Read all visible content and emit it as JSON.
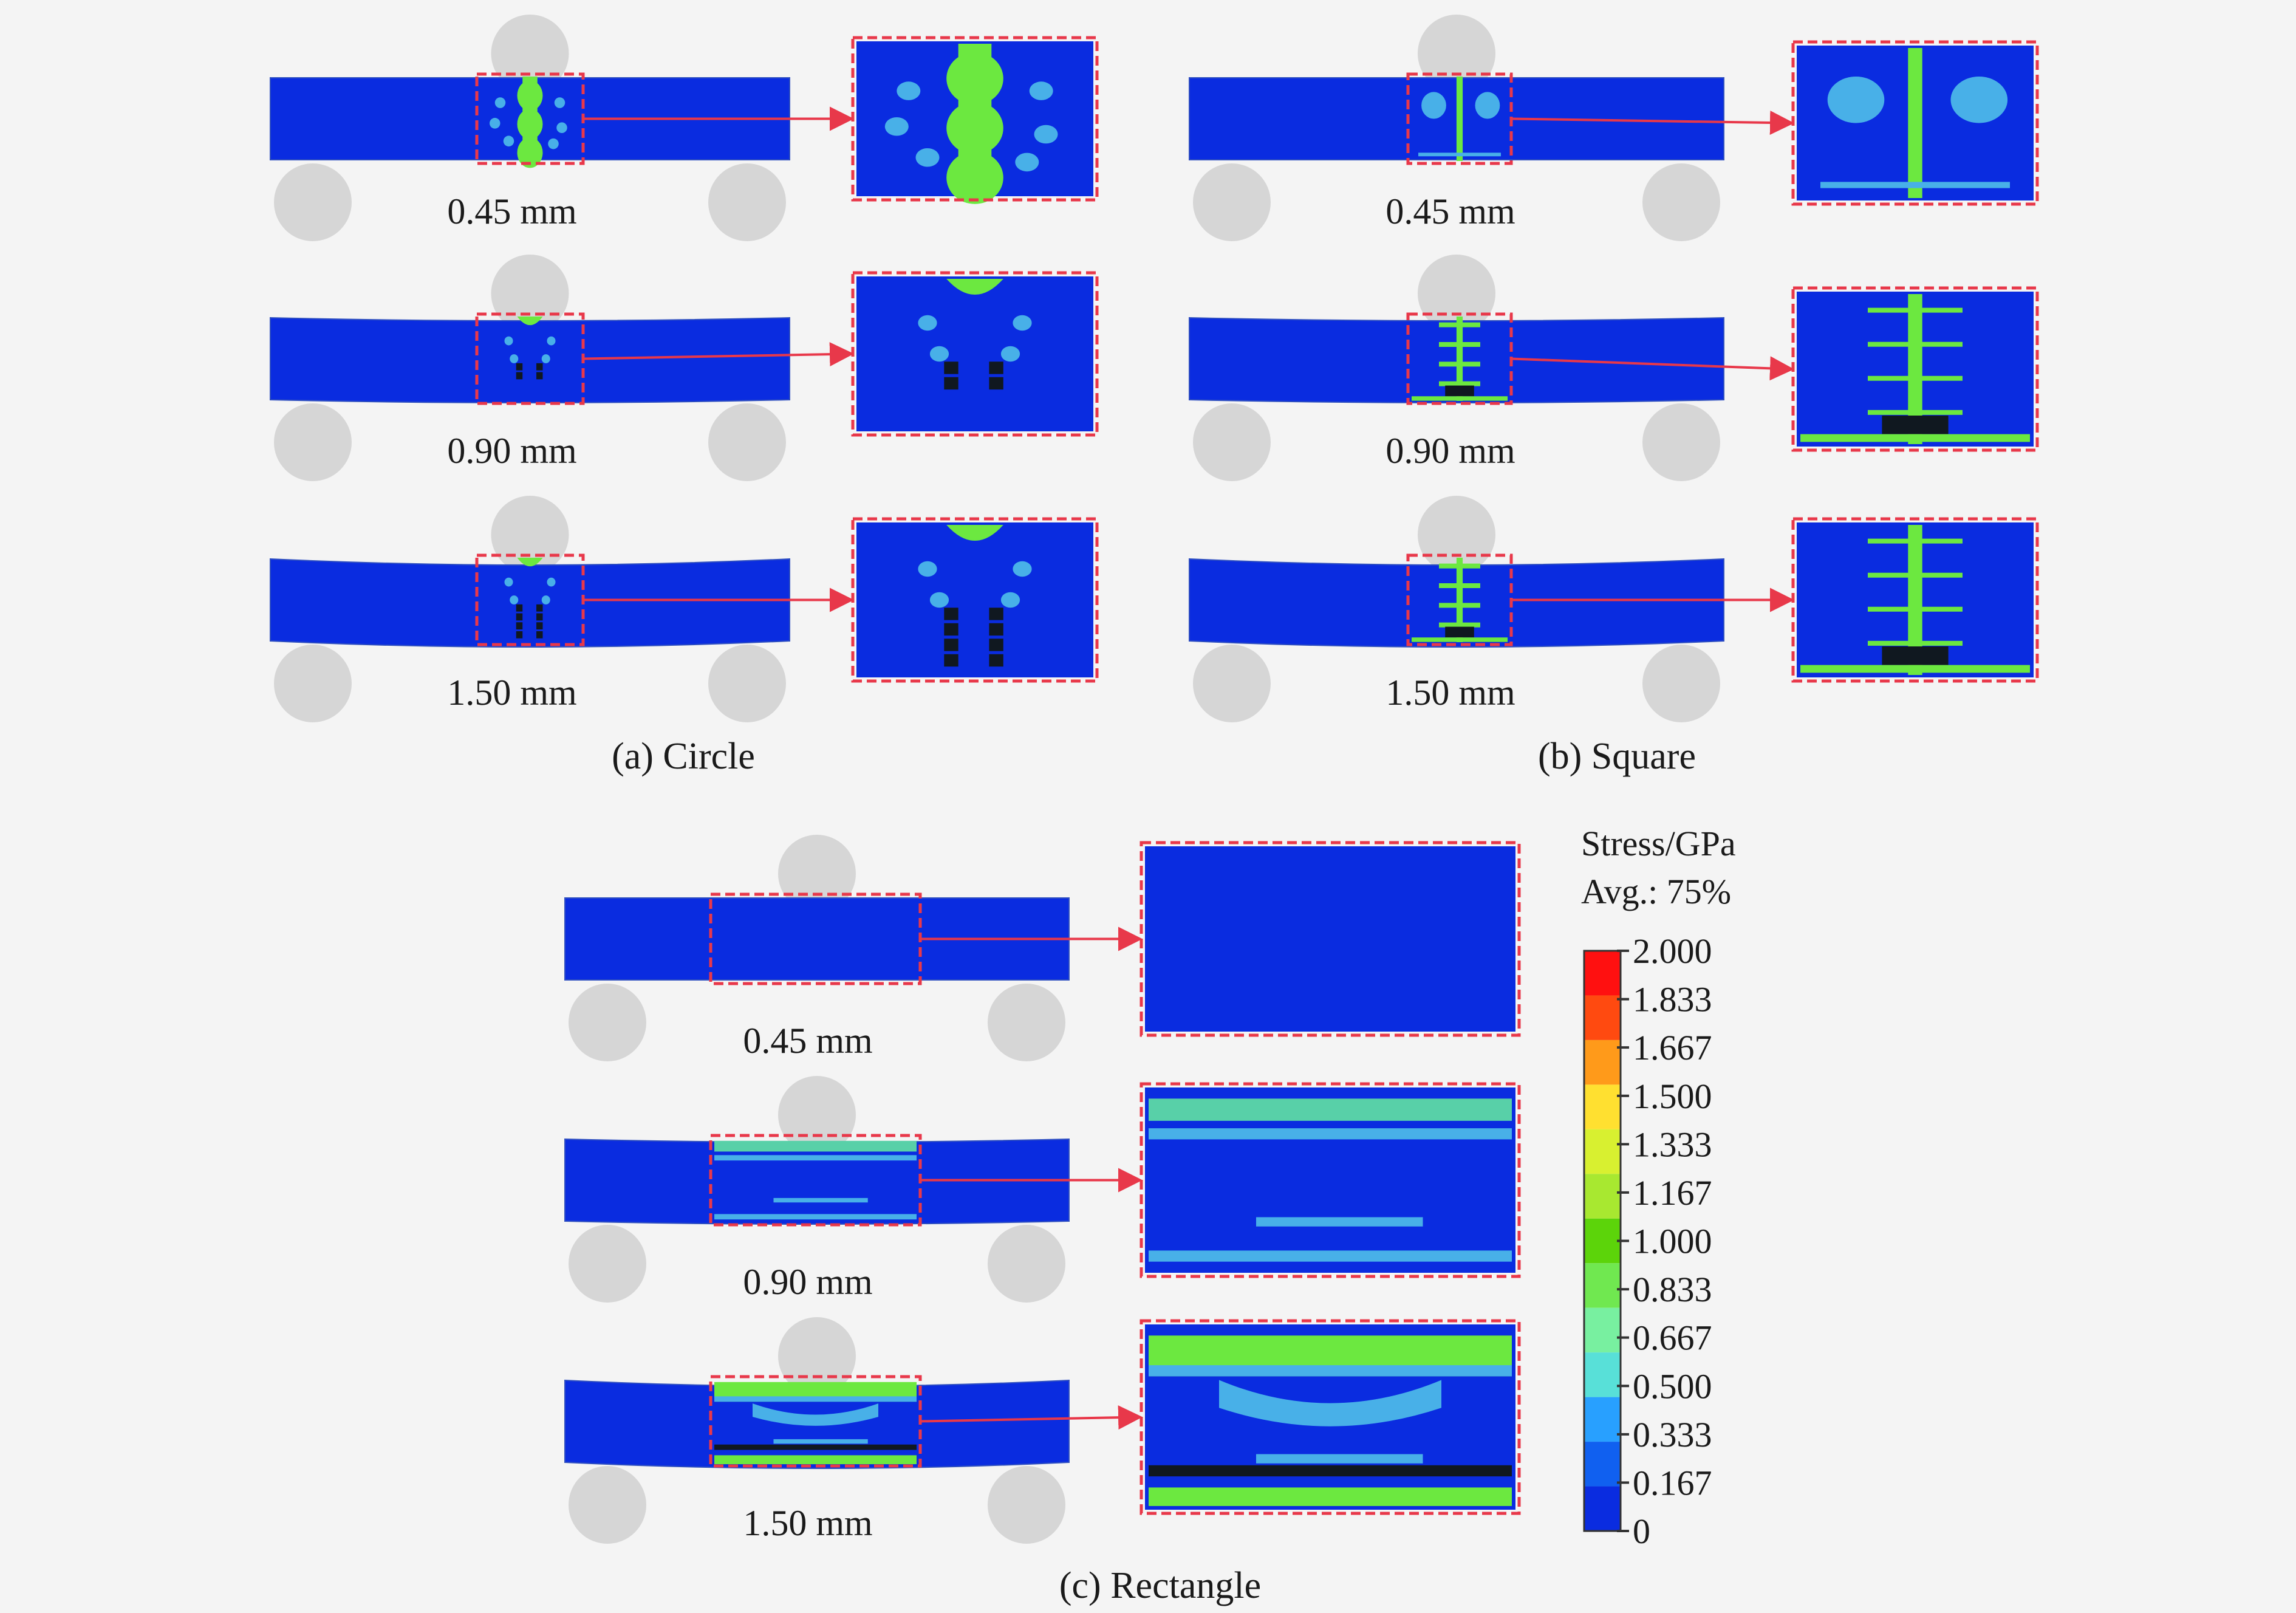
{
  "panels": [
    {
      "caption": "(a) Circle",
      "key": "circle",
      "rows": [
        {
          "label": "0.45 mm"
        },
        {
          "label": "0.90 mm"
        },
        {
          "label": "1.50 mm"
        }
      ]
    },
    {
      "caption": "(b) Square",
      "key": "square",
      "rows": [
        {
          "label": "0.45 mm"
        },
        {
          "label": "0.90 mm"
        },
        {
          "label": "1.50 mm"
        }
      ]
    },
    {
      "caption": "(c) Rectangle",
      "key": "rectangle",
      "rows": [
        {
          "label": "0.45 mm"
        },
        {
          "label": "0.90 mm"
        },
        {
          "label": "1.50 mm"
        }
      ]
    }
  ],
  "legend": {
    "title": "Stress/GPa",
    "subtitle": "Avg.: 75%",
    "ticks": [
      "2.000",
      "1.833",
      "1.667",
      "1.500",
      "1.333",
      "1.167",
      "1.000",
      "0.833",
      "0.667",
      "0.500",
      "0.333",
      "0.167",
      "0"
    ],
    "colors": [
      "#ff1010",
      "#ff4a10",
      "#ff9a1a",
      "#ffe030",
      "#d8f030",
      "#a8e830",
      "#5cd40a",
      "#70e850",
      "#78f0a0",
      "#58e0d8",
      "#28a0ff",
      "#1060f0",
      "#0a2ce0"
    ]
  },
  "colors": {
    "beam": "#0a2ce0",
    "support": "#d6d6d6",
    "frame": "#e8384a",
    "arrow": "#e8384a",
    "stress_green": "#6ce840",
    "stress_light": "#48b0e8",
    "damage": "#101820"
  }
}
